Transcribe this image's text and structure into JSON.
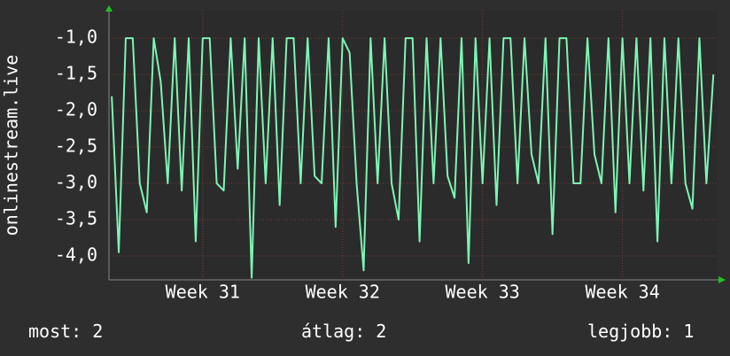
{
  "chart_data": {
    "type": "line",
    "ylabel": "onlinestream.live",
    "x": [
      30.35,
      30.4,
      30.45,
      30.5,
      30.55,
      30.6,
      30.65,
      30.7,
      30.75,
      30.8,
      30.85,
      30.9,
      30.95,
      31.0,
      31.05,
      31.1,
      31.15,
      31.2,
      31.25,
      31.3,
      31.35,
      31.4,
      31.45,
      31.5,
      31.55,
      31.6,
      31.65,
      31.7,
      31.75,
      31.8,
      31.85,
      31.9,
      31.95,
      32.0,
      32.05,
      32.1,
      32.15,
      32.2,
      32.25,
      32.3,
      32.35,
      32.4,
      32.45,
      32.5,
      32.55,
      32.6,
      32.65,
      32.7,
      32.75,
      32.8,
      32.85,
      32.9,
      32.95,
      33.0,
      33.05,
      33.1,
      33.15,
      33.2,
      33.25,
      33.3,
      33.35,
      33.4,
      33.45,
      33.5,
      33.55,
      33.6,
      33.65,
      33.7,
      33.75,
      33.8,
      33.85,
      33.9,
      33.95,
      34.0,
      34.05,
      34.1,
      34.15,
      34.2,
      34.25,
      34.3,
      34.35,
      34.4,
      34.45,
      34.5,
      34.55,
      34.6,
      34.65
    ],
    "series": [
      {
        "color": "#7df5b4",
        "values": [
          -1.8,
          -3.95,
          -1,
          -1,
          -3,
          -3.4,
          -1,
          -1.6,
          -3,
          -1,
          -3.1,
          -1,
          -3.8,
          -1,
          -1,
          -3,
          -3.1,
          -1,
          -2.8,
          -1,
          -4.3,
          -1,
          -3,
          -1,
          -3.3,
          -1,
          -1,
          -3,
          -1,
          -2.9,
          -3,
          -1,
          -3.6,
          -1,
          -1.2,
          -3,
          -4.2,
          -1,
          -3,
          -1,
          -3,
          -3.5,
          -1,
          -1,
          -3.8,
          -1,
          -3,
          -1,
          -2.9,
          -3.2,
          -1,
          -4.1,
          -1,
          -3,
          -1,
          -3.3,
          -1,
          -1,
          -3,
          -1,
          -2.6,
          -3,
          -1,
          -3.7,
          -1,
          -1,
          -3,
          -3,
          -1,
          -2.6,
          -3,
          -1,
          -3.4,
          -1,
          -3,
          -1,
          -3.1,
          -1,
          -3.8,
          -1,
          -3,
          -1,
          -3,
          -3.35,
          -1,
          -3,
          -1.5
        ]
      }
    ],
    "xlim": [
      30.33,
      34.68
    ],
    "xticks": [
      {
        "value": 31,
        "label": "Week 31"
      },
      {
        "value": 32,
        "label": "Week 32"
      },
      {
        "value": 33,
        "label": "Week 33"
      },
      {
        "value": 34,
        "label": "Week 34"
      }
    ],
    "ylim": [
      -4.33,
      -0.62
    ],
    "yticks": [
      {
        "value": -1,
        "label": "-1,0"
      },
      {
        "value": -1.5,
        "label": "-1,5"
      },
      {
        "value": -2,
        "label": "-2,0"
      },
      {
        "value": -2.5,
        "label": "-2,5"
      },
      {
        "value": -3,
        "label": "-3,0"
      },
      {
        "value": -3.5,
        "label": "-3,5"
      },
      {
        "value": -4,
        "label": "-4,0"
      }
    ],
    "grid": true,
    "stats": [
      {
        "label": "most:",
        "value": 2
      },
      {
        "label": "átlag:",
        "value": 2
      },
      {
        "label": "legjobb:",
        "value": 1
      }
    ]
  }
}
